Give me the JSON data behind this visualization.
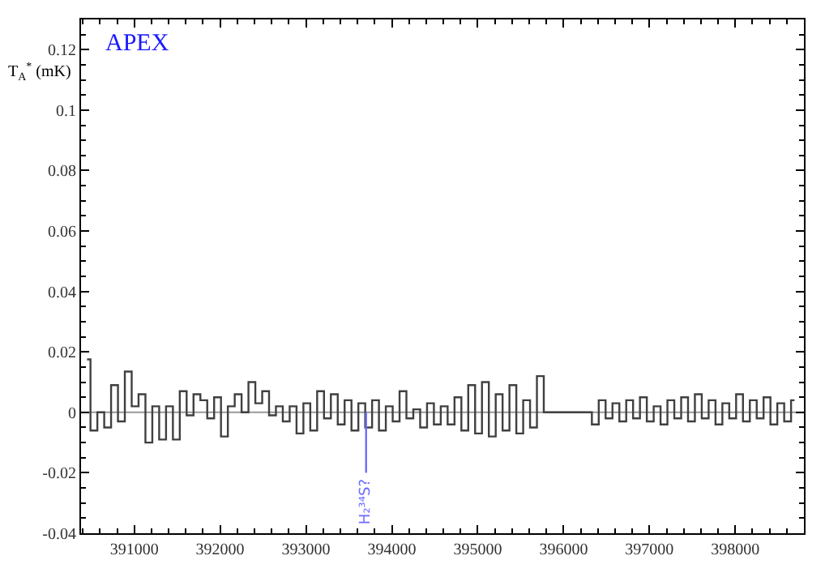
{
  "chart_data": {
    "type": "step",
    "ylabel": "T$_{A}$$^{*}$ (mK)",
    "xlim": [
      390380,
      398800
    ],
    "xticks": [
      391000,
      392000,
      393000,
      394000,
      395000,
      396000,
      397000,
      398000
    ],
    "ylim": [
      -0.04,
      0.13
    ],
    "yticks": [
      -0.04,
      -0.02,
      0,
      0.02,
      0.04,
      0.06,
      0.08,
      {
        "value": 0.1,
        "label": "0.1"
      },
      0.12
    ],
    "grid": false,
    "annotations": [
      "APEX"
    ],
    "ref_lines": [
      {
        "axis": "y",
        "value": 0,
        "color": "#999999"
      },
      {
        "axis": "x",
        "value": 393700,
        "label": "H₂³⁴S?",
        "color": "#6b6bff"
      }
    ],
    "series": [
      {
        "color": "#404040",
        "x": [
          390450,
          390530,
          390610,
          390690,
          390770,
          390850,
          390930,
          391010,
          391090,
          391170,
          391250,
          391330,
          391410,
          391490,
          391570,
          391650,
          391730,
          391810,
          391890,
          391970,
          392050,
          392130,
          392210,
          392290,
          392370,
          392450,
          392530,
          392610,
          392690,
          392770,
          392850,
          392930,
          393010,
          393090,
          393170,
          393250,
          393330,
          393410,
          393490,
          393570,
          393650,
          393730,
          393810,
          393890,
          393970,
          394050,
          394130,
          394210,
          394290,
          394370,
          394450,
          394530,
          394610,
          394690,
          394770,
          394850,
          394930,
          395010,
          395090,
          395170,
          395250,
          395330,
          395410,
          395490,
          395570,
          395650,
          395730,
          395810,
          395890,
          395970,
          396050,
          396130,
          396210,
          396290,
          396370,
          396450,
          396530,
          396610,
          396690,
          396770,
          396850,
          396930,
          397010,
          397090,
          397170,
          397250,
          397330,
          397410,
          397490,
          397570,
          397650,
          397730,
          397810,
          397890,
          397970,
          398050,
          398130,
          398210,
          398290,
          398370,
          398450,
          398530,
          398610,
          398690
        ],
        "values": [
          0.0175,
          -0.006,
          0.0,
          -0.005,
          0.009,
          -0.003,
          0.0135,
          0.002,
          0.006,
          -0.01,
          0.002,
          -0.009,
          0.002,
          -0.009,
          0.007,
          -0.001,
          0.006,
          0.004,
          -0.002,
          0.005,
          -0.008,
          0.002,
          0.006,
          0.0,
          0.01,
          0.003,
          0.007,
          -0.001,
          0.002,
          -0.003,
          0.002,
          -0.007,
          0.003,
          -0.006,
          0.007,
          -0.002,
          0.006,
          -0.004,
          0.004,
          -0.006,
          0.003,
          -0.005,
          0.004,
          -0.006,
          0.002,
          -0.003,
          0.007,
          -0.002,
          0.001,
          -0.005,
          0.003,
          -0.004,
          0.002,
          -0.004,
          0.005,
          -0.006,
          0.009,
          -0.007,
          0.01,
          -0.008,
          0.006,
          -0.006,
          0.009,
          -0.007,
          0.004,
          -0.005,
          0.012,
          0.0,
          0.0,
          0.0,
          0.0,
          0.0,
          0.0,
          0.0,
          -0.004,
          0.004,
          -0.002,
          0.003,
          -0.003,
          0.004,
          -0.002,
          0.005,
          -0.003,
          0.002,
          -0.004,
          0.004,
          -0.002,
          0.005,
          -0.003,
          0.006,
          -0.002,
          0.004,
          -0.004,
          0.003,
          -0.002,
          0.006,
          -0.003,
          0.004,
          -0.002,
          0.005,
          -0.004,
          0.003,
          -0.003,
          0.004
        ]
      }
    ]
  }
}
